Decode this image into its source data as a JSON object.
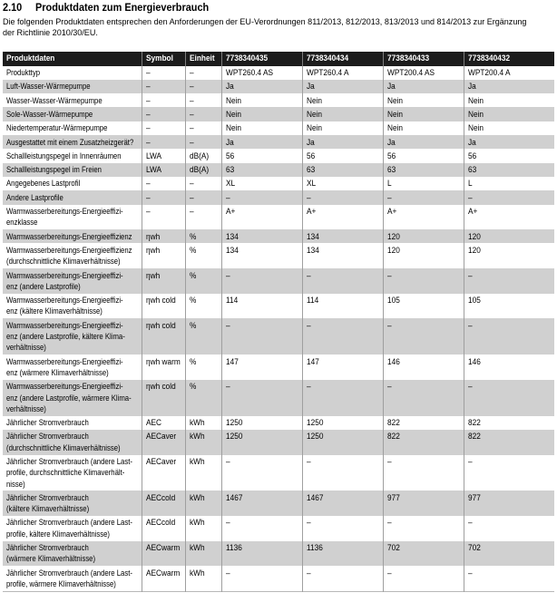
{
  "page": {
    "section_number": "2.10",
    "section_title": "Produktdaten zum Energieverbrauch",
    "intro": "Die folgenden Produktdaten entsprechen den Anforderungen der EU-Verordnungen 811/2013, 812/2013, 813/2013 und 814/2013 zur Ergänzung\nder Richtlinie 2010/30/EU."
  },
  "table": {
    "columns": [
      "Produktdaten",
      "Symbol",
      "Einheit",
      "7738340435",
      "7738340434",
      "7738340433",
      "7738340432"
    ],
    "rows": [
      {
        "label": "Produkttyp",
        "symbol": "–",
        "unit": "–",
        "values": [
          "WPT260.4 AS",
          "WPT260.4 A",
          "WPT200.4 AS",
          "WPT200.4 A"
        ]
      },
      {
        "label": "Luft-Wasser-Wärmepumpe",
        "symbol": "–",
        "unit": "–",
        "values": [
          "Ja",
          "Ja",
          "Ja",
          "Ja"
        ]
      },
      {
        "label": "Wasser-Wasser-Wärmepumpe",
        "symbol": "–",
        "unit": "–",
        "values": [
          "Nein",
          "Nein",
          "Nein",
          "Nein"
        ]
      },
      {
        "label": "Sole-Wasser-Wärmepumpe",
        "symbol": "–",
        "unit": "–",
        "values": [
          "Nein",
          "Nein",
          "Nein",
          "Nein"
        ]
      },
      {
        "label": "Niedertemperatur-Wärmepumpe",
        "symbol": "–",
        "unit": "–",
        "values": [
          "Nein",
          "Nein",
          "Nein",
          "Nein"
        ]
      },
      {
        "label": "Ausgestattet mit einem Zusatzheizgerät?",
        "symbol": "–",
        "unit": "–",
        "values": [
          "Ja",
          "Ja",
          "Ja",
          "Ja"
        ]
      },
      {
        "label": "Schallleistungspegel in Innenräumen",
        "symbol": "LWA",
        "unit": "dB(A)",
        "values": [
          "56",
          "56",
          "56",
          "56"
        ]
      },
      {
        "label": "Schallleistungspegel im Freien",
        "symbol": "LWA",
        "unit": "dB(A)",
        "values": [
          "63",
          "63",
          "63",
          "63"
        ]
      },
      {
        "label": "Angegebenes Lastprofil",
        "symbol": "–",
        "unit": "–",
        "values": [
          "XL",
          "XL",
          "L",
          "L"
        ]
      },
      {
        "label": "Andere Lastprofile",
        "symbol": "–",
        "unit": "–",
        "values": [
          "–",
          "–",
          "–",
          "–"
        ]
      },
      {
        "label": "Warmwasserbereitungs-Energieeffizi-\nenzklasse",
        "symbol": "–",
        "unit": "–",
        "values": [
          "A+",
          "A+",
          "A+",
          "A+"
        ]
      },
      {
        "label": "Warmwasserbereitungs-Energieeffizienz",
        "symbol": "ηwh",
        "unit": "%",
        "values": [
          "134",
          "134",
          "120",
          "120"
        ]
      },
      {
        "label": "Warmwasserbereitungs-Energieeffizienz\n(durchschnittliche Klimaverhältnisse)",
        "symbol": "ηwh",
        "unit": "%",
        "values": [
          "134",
          "134",
          "120",
          "120"
        ]
      },
      {
        "label": "Warmwasserbereitungs-Energieeffizi-\nenz (andere Lastprofile)",
        "symbol": "ηwh",
        "unit": "%",
        "values": [
          "–",
          "–",
          "–",
          "–"
        ]
      },
      {
        "label": "Warmwasserbereitungs-Energieeffizi-\nenz (kältere Klimaverhältnisse)",
        "symbol": "ηwh cold",
        "unit": "%",
        "values": [
          "114",
          "114",
          "105",
          "105"
        ]
      },
      {
        "label": "Warmwasserbereitungs-Energieeffizi-\nenz (andere Lastprofile, kältere Klima-\nverhältnisse)",
        "symbol": "ηwh cold",
        "unit": "%",
        "values": [
          "–",
          "–",
          "–",
          "–"
        ]
      },
      {
        "label": "Warmwasserbereitungs-Energieeffizi-\nenz (wärmere Klimaverhältnisse)",
        "symbol": "ηwh warm",
        "unit": "%",
        "values": [
          "147",
          "147",
          "146",
          "146"
        ]
      },
      {
        "label": "Warmwasserbereitungs-Energieeffizi-\nenz (andere Lastprofile, wärmere Klima-\nverhältnisse)",
        "symbol": "ηwh cold",
        "unit": "%",
        "values": [
          "–",
          "–",
          "–",
          "–"
        ]
      },
      {
        "label": "Jährlicher Stromverbrauch",
        "symbol": "AEC",
        "unit": "kWh",
        "values": [
          "1250",
          "1250",
          "822",
          "822"
        ]
      },
      {
        "label": "Jährlicher Stromverbrauch\n(durchschnittliche Klimaverhältnisse)",
        "symbol": "AECaver",
        "unit": "kWh",
        "values": [
          "1250",
          "1250",
          "822",
          "822"
        ]
      },
      {
        "label": "Jährlicher Stromverbrauch (andere Last-\nprofile, durchschnittliche Klimaverhält-\nnisse)",
        "symbol": "AECaver",
        "unit": "kWh",
        "values": [
          "–",
          "–",
          "–",
          "–"
        ]
      },
      {
        "label": "Jährlicher Stromverbrauch\n(kältere Klimaverhältnisse)",
        "symbol": "AECcold",
        "unit": "kWh",
        "values": [
          "1467",
          "1467",
          "977",
          "977"
        ]
      },
      {
        "label": "Jährlicher Stromverbrauch (andere Last-\nprofile, kältere Klimaverhältnisse)",
        "symbol": "AECcold",
        "unit": "kWh",
        "values": [
          "–",
          "–",
          "–",
          "–"
        ]
      },
      {
        "label": "Jährlicher Stromverbrauch\n(wärmere Klimaverhältnisse)",
        "symbol": "AECwarm",
        "unit": "kWh",
        "values": [
          "1136",
          "1136",
          "702",
          "702"
        ]
      },
      {
        "label": "Jährlicher Stromverbrauch (andere Last-\nprofile, wärmere Klimaverhältnisse)",
        "symbol": "AECwarm",
        "unit": "kWh",
        "values": [
          "–",
          "–",
          "–",
          "–"
        ]
      }
    ]
  },
  "colors": {
    "header_bg": "#1c1c1c",
    "header_text": "#ffffff",
    "row_alt_bg": "#d0d0d0",
    "grid_line": "#9f9f9f"
  }
}
